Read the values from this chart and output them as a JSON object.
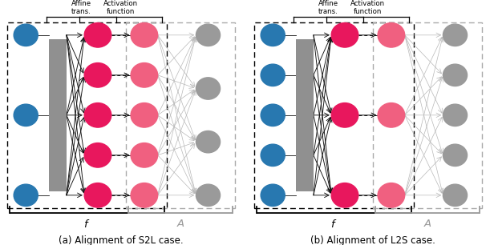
{
  "fig_width": 6.16,
  "fig_height": 3.06,
  "dpi": 100,
  "blue_color": "#2878b0",
  "pink_dark_color": "#e8175d",
  "pink_light_color": "#f06080",
  "gray_node_color": "#9a9a9a",
  "gray_rect_color": "#909090",
  "black_color": "#111111",
  "gray_arrow_color": "#b8b8b8",
  "caption_left": "(a) Alignment of S2L case.",
  "caption_right": "(b) Alignment of L2S case.",
  "label_f": "$f$",
  "label_A": "$A$",
  "label_affine": "Affine\ntrans.",
  "label_activation": "Activation\nfunction",
  "s2l": {
    "n_in": 3,
    "n_mid1": 5,
    "n_mid2": 5,
    "n_out": 4
  },
  "l2s": {
    "n_in": 5,
    "n_mid1": 3,
    "n_mid2": 3,
    "n_out": 5
  }
}
